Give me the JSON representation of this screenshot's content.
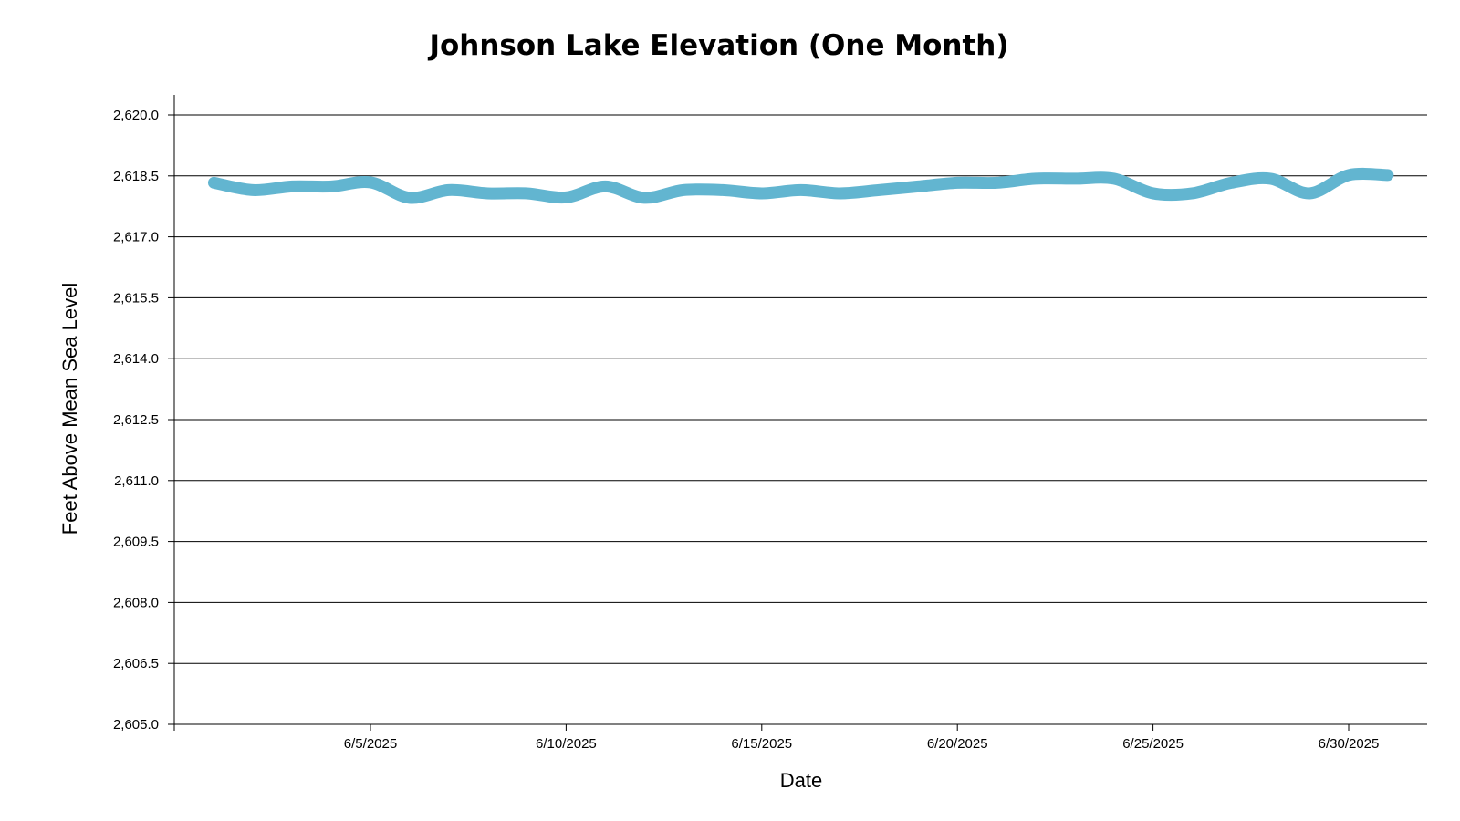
{
  "chart_data": {
    "type": "line",
    "title": "Johnson Lake Elevation (One Month)",
    "xlabel": "Date",
    "ylabel": "Feet Above Mean Sea Level",
    "x_start": "6/1/2025",
    "x_end": "7/2/2025",
    "ylim": [
      2605.0,
      2620.5
    ],
    "y_ticks": [
      {
        "value": 2620.0,
        "label": "2,620.0"
      },
      {
        "value": 2618.5,
        "label": "2,618.5"
      },
      {
        "value": 2617.0,
        "label": "2,617.0"
      },
      {
        "value": 2615.5,
        "label": "2,615.5"
      },
      {
        "value": 2614.0,
        "label": "2,614.0"
      },
      {
        "value": 2612.5,
        "label": "2,612.5"
      },
      {
        "value": 2611.0,
        "label": "2,611.0"
      },
      {
        "value": 2609.5,
        "label": "2,609.5"
      },
      {
        "value": 2608.0,
        "label": "2,608.0"
      },
      {
        "value": 2606.5,
        "label": "2,606.5"
      },
      {
        "value": 2605.0,
        "label": "2,605.0"
      }
    ],
    "x_ticks": [
      {
        "date": "6/5/2025",
        "label": "6/5/2025"
      },
      {
        "date": "6/10/2025",
        "label": "6/10/2025"
      },
      {
        "date": "6/15/2025",
        "label": "6/15/2025"
      },
      {
        "date": "6/20/2025",
        "label": "6/20/2025"
      },
      {
        "date": "6/25/2025",
        "label": "6/25/2025"
      },
      {
        "date": "6/30/2025",
        "label": "6/30/2025"
      }
    ],
    "grid": true,
    "series": [
      {
        "color": "#62b5d0",
        "points": [
          {
            "x": "6/1/2025",
            "y": 2618.33
          },
          {
            "x": "6/2/2025",
            "y": 2618.15
          },
          {
            "x": "6/3/2025",
            "y": 2618.24
          },
          {
            "x": "6/4/2025",
            "y": 2618.24
          },
          {
            "x": "6/5/2025",
            "y": 2618.34
          },
          {
            "x": "6/6/2025",
            "y": 2617.96
          },
          {
            "x": "6/7/2025",
            "y": 2618.15
          },
          {
            "x": "6/8/2025",
            "y": 2618.07
          },
          {
            "x": "6/9/2025",
            "y": 2618.07
          },
          {
            "x": "6/10/2025",
            "y": 2617.97
          },
          {
            "x": "6/11/2025",
            "y": 2618.24
          },
          {
            "x": "6/12/2025",
            "y": 2617.96
          },
          {
            "x": "6/13/2025",
            "y": 2618.15
          },
          {
            "x": "6/14/2025",
            "y": 2618.15
          },
          {
            "x": "6/15/2025",
            "y": 2618.07
          },
          {
            "x": "6/16/2025",
            "y": 2618.15
          },
          {
            "x": "6/17/2025",
            "y": 2618.07
          },
          {
            "x": "6/18/2025",
            "y": 2618.15
          },
          {
            "x": "6/19/2025",
            "y": 2618.24
          },
          {
            "x": "6/20/2025",
            "y": 2618.33
          },
          {
            "x": "6/21/2025",
            "y": 2618.33
          },
          {
            "x": "6/22/2025",
            "y": 2618.43
          },
          {
            "x": "6/23/2025",
            "y": 2618.43
          },
          {
            "x": "6/24/2025",
            "y": 2618.43
          },
          {
            "x": "6/25/2025",
            "y": 2618.07
          },
          {
            "x": "6/26/2025",
            "y": 2618.07
          },
          {
            "x": "6/27/2025",
            "y": 2618.33
          },
          {
            "x": "6/28/2025",
            "y": 2618.43
          },
          {
            "x": "6/29/2025",
            "y": 2618.07
          },
          {
            "x": "6/30/2025",
            "y": 2618.52
          },
          {
            "x": "7/1/2025",
            "y": 2618.52
          }
        ]
      }
    ]
  }
}
